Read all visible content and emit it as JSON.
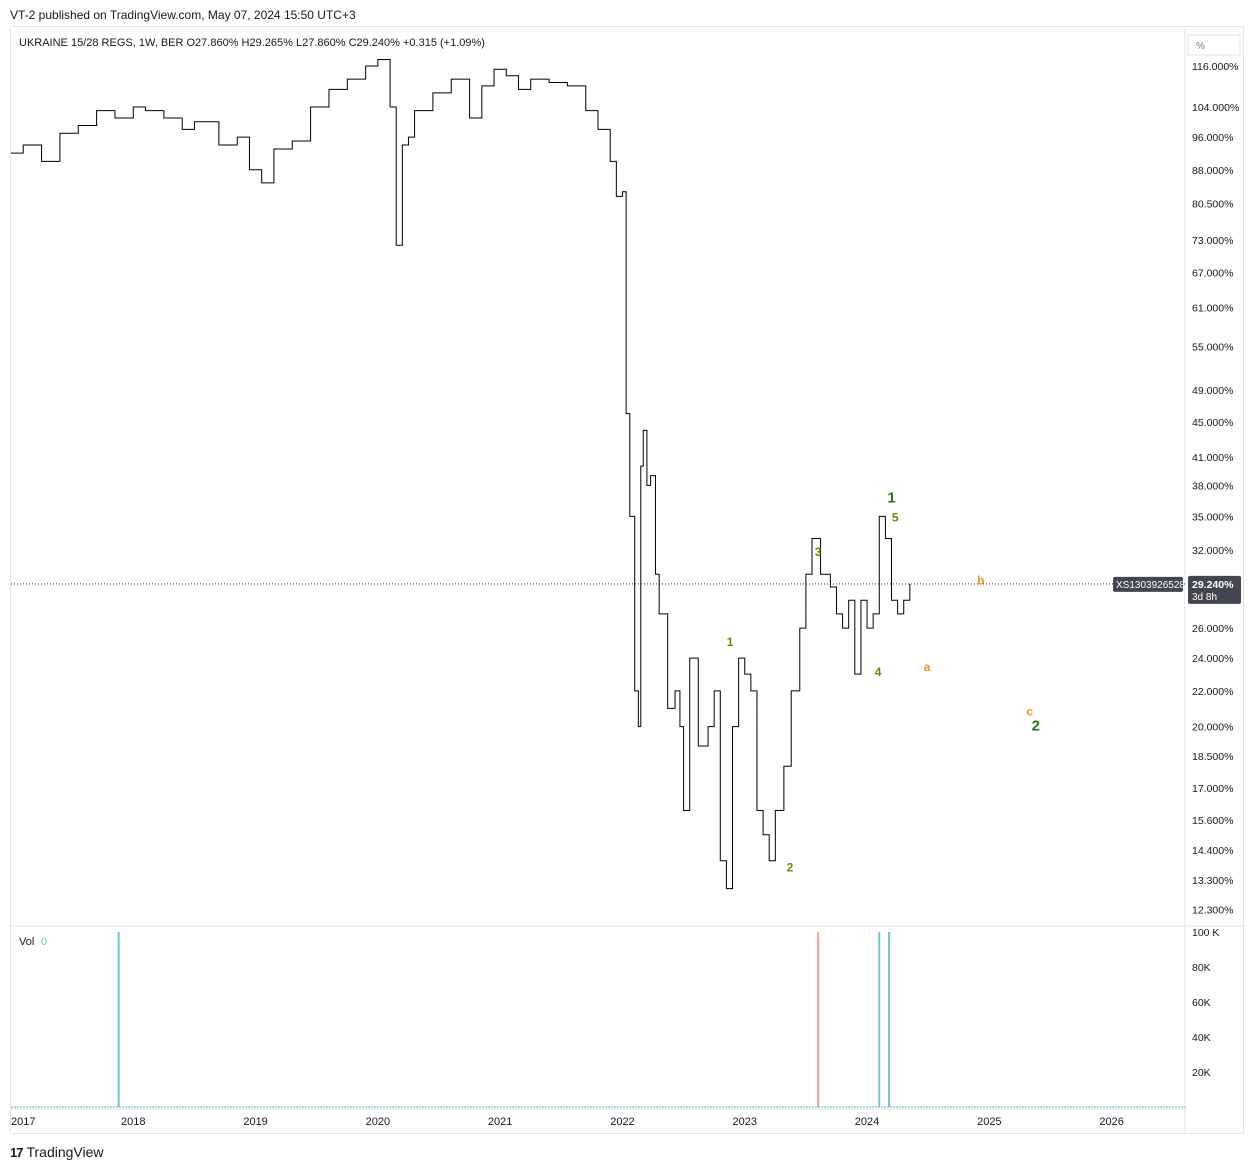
{
  "header": {
    "published": "VT-2 published on TradingView.com, May 07, 2024 15:50 UTC+3"
  },
  "footer": {
    "logo_mark": "17",
    "logo_text": "TradingView"
  },
  "colors": {
    "price_line": "#000000",
    "wave_olive": "#808000",
    "wave_green": "#1b7d1b",
    "wave_orange": "#f7931a",
    "vol_up": "#70c5c5",
    "vol_down": "#f49b9b",
    "last_label_bg": "#434651",
    "grid": "#e0e3eb",
    "axis_text": "#131722"
  },
  "chart_data": {
    "type": "line",
    "title": "",
    "symbol_legend": {
      "name": "UKRAINE 15/28 REGS, 1W, BER",
      "open": "O27.860%",
      "high": "H29.265%",
      "low": "L27.860%",
      "close": "C29.240%",
      "change": "+0.315 (+1.09%)"
    },
    "scale": "log",
    "y_unit_box": "%",
    "yticks": [
      "116.000%",
      "104.000%",
      "96.000%",
      "88.000%",
      "80.500%",
      "73.000%",
      "67.000%",
      "61.000%",
      "55.000%",
      "49.000%",
      "45.000%",
      "41.000%",
      "38.000%",
      "35.000%",
      "32.000%",
      "26.000%",
      "24.000%",
      "22.000%",
      "20.000%",
      "18.500%",
      "17.000%",
      "15.600%",
      "14.400%",
      "13.300%",
      "12.300%"
    ],
    "ytick_values": [
      116,
      104,
      96,
      88,
      80.5,
      73,
      67,
      61,
      55,
      49,
      45,
      41,
      38,
      35,
      32,
      26,
      24,
      22,
      20,
      18.5,
      17,
      15.6,
      14.4,
      13.3,
      12.3
    ],
    "xticks": [
      "2017",
      "2018",
      "2019",
      "2020",
      "2021",
      "2022",
      "2023",
      "2024",
      "2025",
      "2026"
    ],
    "xtick_values": [
      2017,
      2018,
      2019,
      2020,
      2021,
      2022,
      2023,
      2024,
      2025,
      2026
    ],
    "xlim": [
      2017.0,
      2026.6
    ],
    "last_price": {
      "value": 29.24,
      "label": "29.240%",
      "countdown": "3d 8h",
      "symbol": "XS1303926528"
    },
    "series": [
      {
        "name": "UKRAINE 15/28 REGS",
        "x": [
          2017.0,
          2017.1,
          2017.25,
          2017.4,
          2017.55,
          2017.7,
          2017.85,
          2018.0,
          2018.1,
          2018.25,
          2018.4,
          2018.5,
          2018.7,
          2018.85,
          2018.95,
          2019.05,
          2019.15,
          2019.3,
          2019.45,
          2019.6,
          2019.75,
          2019.9,
          2020.0,
          2020.1,
          2020.15,
          2020.2,
          2020.25,
          2020.3,
          2020.45,
          2020.6,
          2020.75,
          2020.85,
          2020.95,
          2021.05,
          2021.15,
          2021.25,
          2021.4,
          2021.55,
          2021.7,
          2021.8,
          2021.9,
          2021.95,
          2022.0,
          2022.03,
          2022.06,
          2022.1,
          2022.13,
          2022.15,
          2022.17,
          2022.2,
          2022.23,
          2022.27,
          2022.3,
          2022.37,
          2022.43,
          2022.47,
          2022.5,
          2022.55,
          2022.62,
          2022.7,
          2022.75,
          2022.8,
          2022.85,
          2022.9,
          2022.95,
          2023.0,
          2023.05,
          2023.1,
          2023.15,
          2023.2,
          2023.25,
          2023.32,
          2023.38,
          2023.45,
          2023.5,
          2023.55,
          2023.62,
          2023.7,
          2023.75,
          2023.8,
          2023.85,
          2023.9,
          2023.95,
          2024.0,
          2024.05,
          2024.1,
          2024.15,
          2024.2,
          2024.25,
          2024.3,
          2024.35
        ],
        "values": [
          92,
          94,
          90,
          97,
          99,
          103,
          101,
          104,
          103,
          101,
          98,
          100,
          94,
          96,
          88,
          85,
          93,
          95,
          104,
          109,
          112,
          116,
          118,
          104,
          72,
          94,
          96,
          103,
          108,
          112,
          101,
          110,
          115,
          113,
          109,
          112,
          111,
          110,
          103,
          98,
          90,
          82,
          83,
          46,
          35,
          22,
          20,
          40,
          44,
          38,
          39,
          30,
          27,
          21,
          22,
          20,
          16,
          24,
          19,
          20,
          22,
          14,
          13,
          20,
          24,
          23,
          22,
          16,
          15,
          14,
          16,
          18,
          22,
          26,
          30,
          33,
          30,
          29,
          27,
          26,
          28,
          23,
          28,
          26,
          27,
          35,
          33,
          28,
          27,
          28,
          29.24
        ]
      }
    ],
    "wave_labels": [
      {
        "text": "1",
        "x": 2022.88,
        "y": 24.8,
        "color": "olive"
      },
      {
        "text": "2",
        "x": 2023.37,
        "y": 13.6,
        "color": "olive"
      },
      {
        "text": "3",
        "x": 2023.6,
        "y": 31.5,
        "color": "olive"
      },
      {
        "text": "4",
        "x": 2024.09,
        "y": 22.9,
        "color": "olive"
      },
      {
        "text": "5",
        "x": 2024.23,
        "y": 34.5,
        "color": "olive"
      },
      {
        "text": "1",
        "x": 2024.2,
        "y": 36.3,
        "color": "green"
      },
      {
        "text": "a",
        "x": 2024.49,
        "y": 23.2,
        "color": "orange"
      },
      {
        "text": "b",
        "x": 2024.93,
        "y": 29.2,
        "color": "orange"
      },
      {
        "text": "c",
        "x": 2025.33,
        "y": 20.6,
        "color": "orange"
      },
      {
        "text": "2",
        "x": 2025.38,
        "y": 19.8,
        "color": "green"
      }
    ],
    "volume": {
      "legend": "Vol",
      "legend_value": "0",
      "yticks": [
        "100 K",
        "80K",
        "60K",
        "40K",
        "20K"
      ],
      "ytick_values": [
        100,
        80,
        60,
        40,
        20
      ],
      "ylim": [
        0,
        100
      ],
      "bars": [
        {
          "x": 2017.88,
          "value": 100,
          "dir": "up"
        },
        {
          "x": 2023.6,
          "value": 100,
          "dir": "down"
        },
        {
          "x": 2024.1,
          "value": 100,
          "dir": "up"
        },
        {
          "x": 2024.18,
          "value": 100,
          "dir": "up"
        }
      ]
    }
  }
}
